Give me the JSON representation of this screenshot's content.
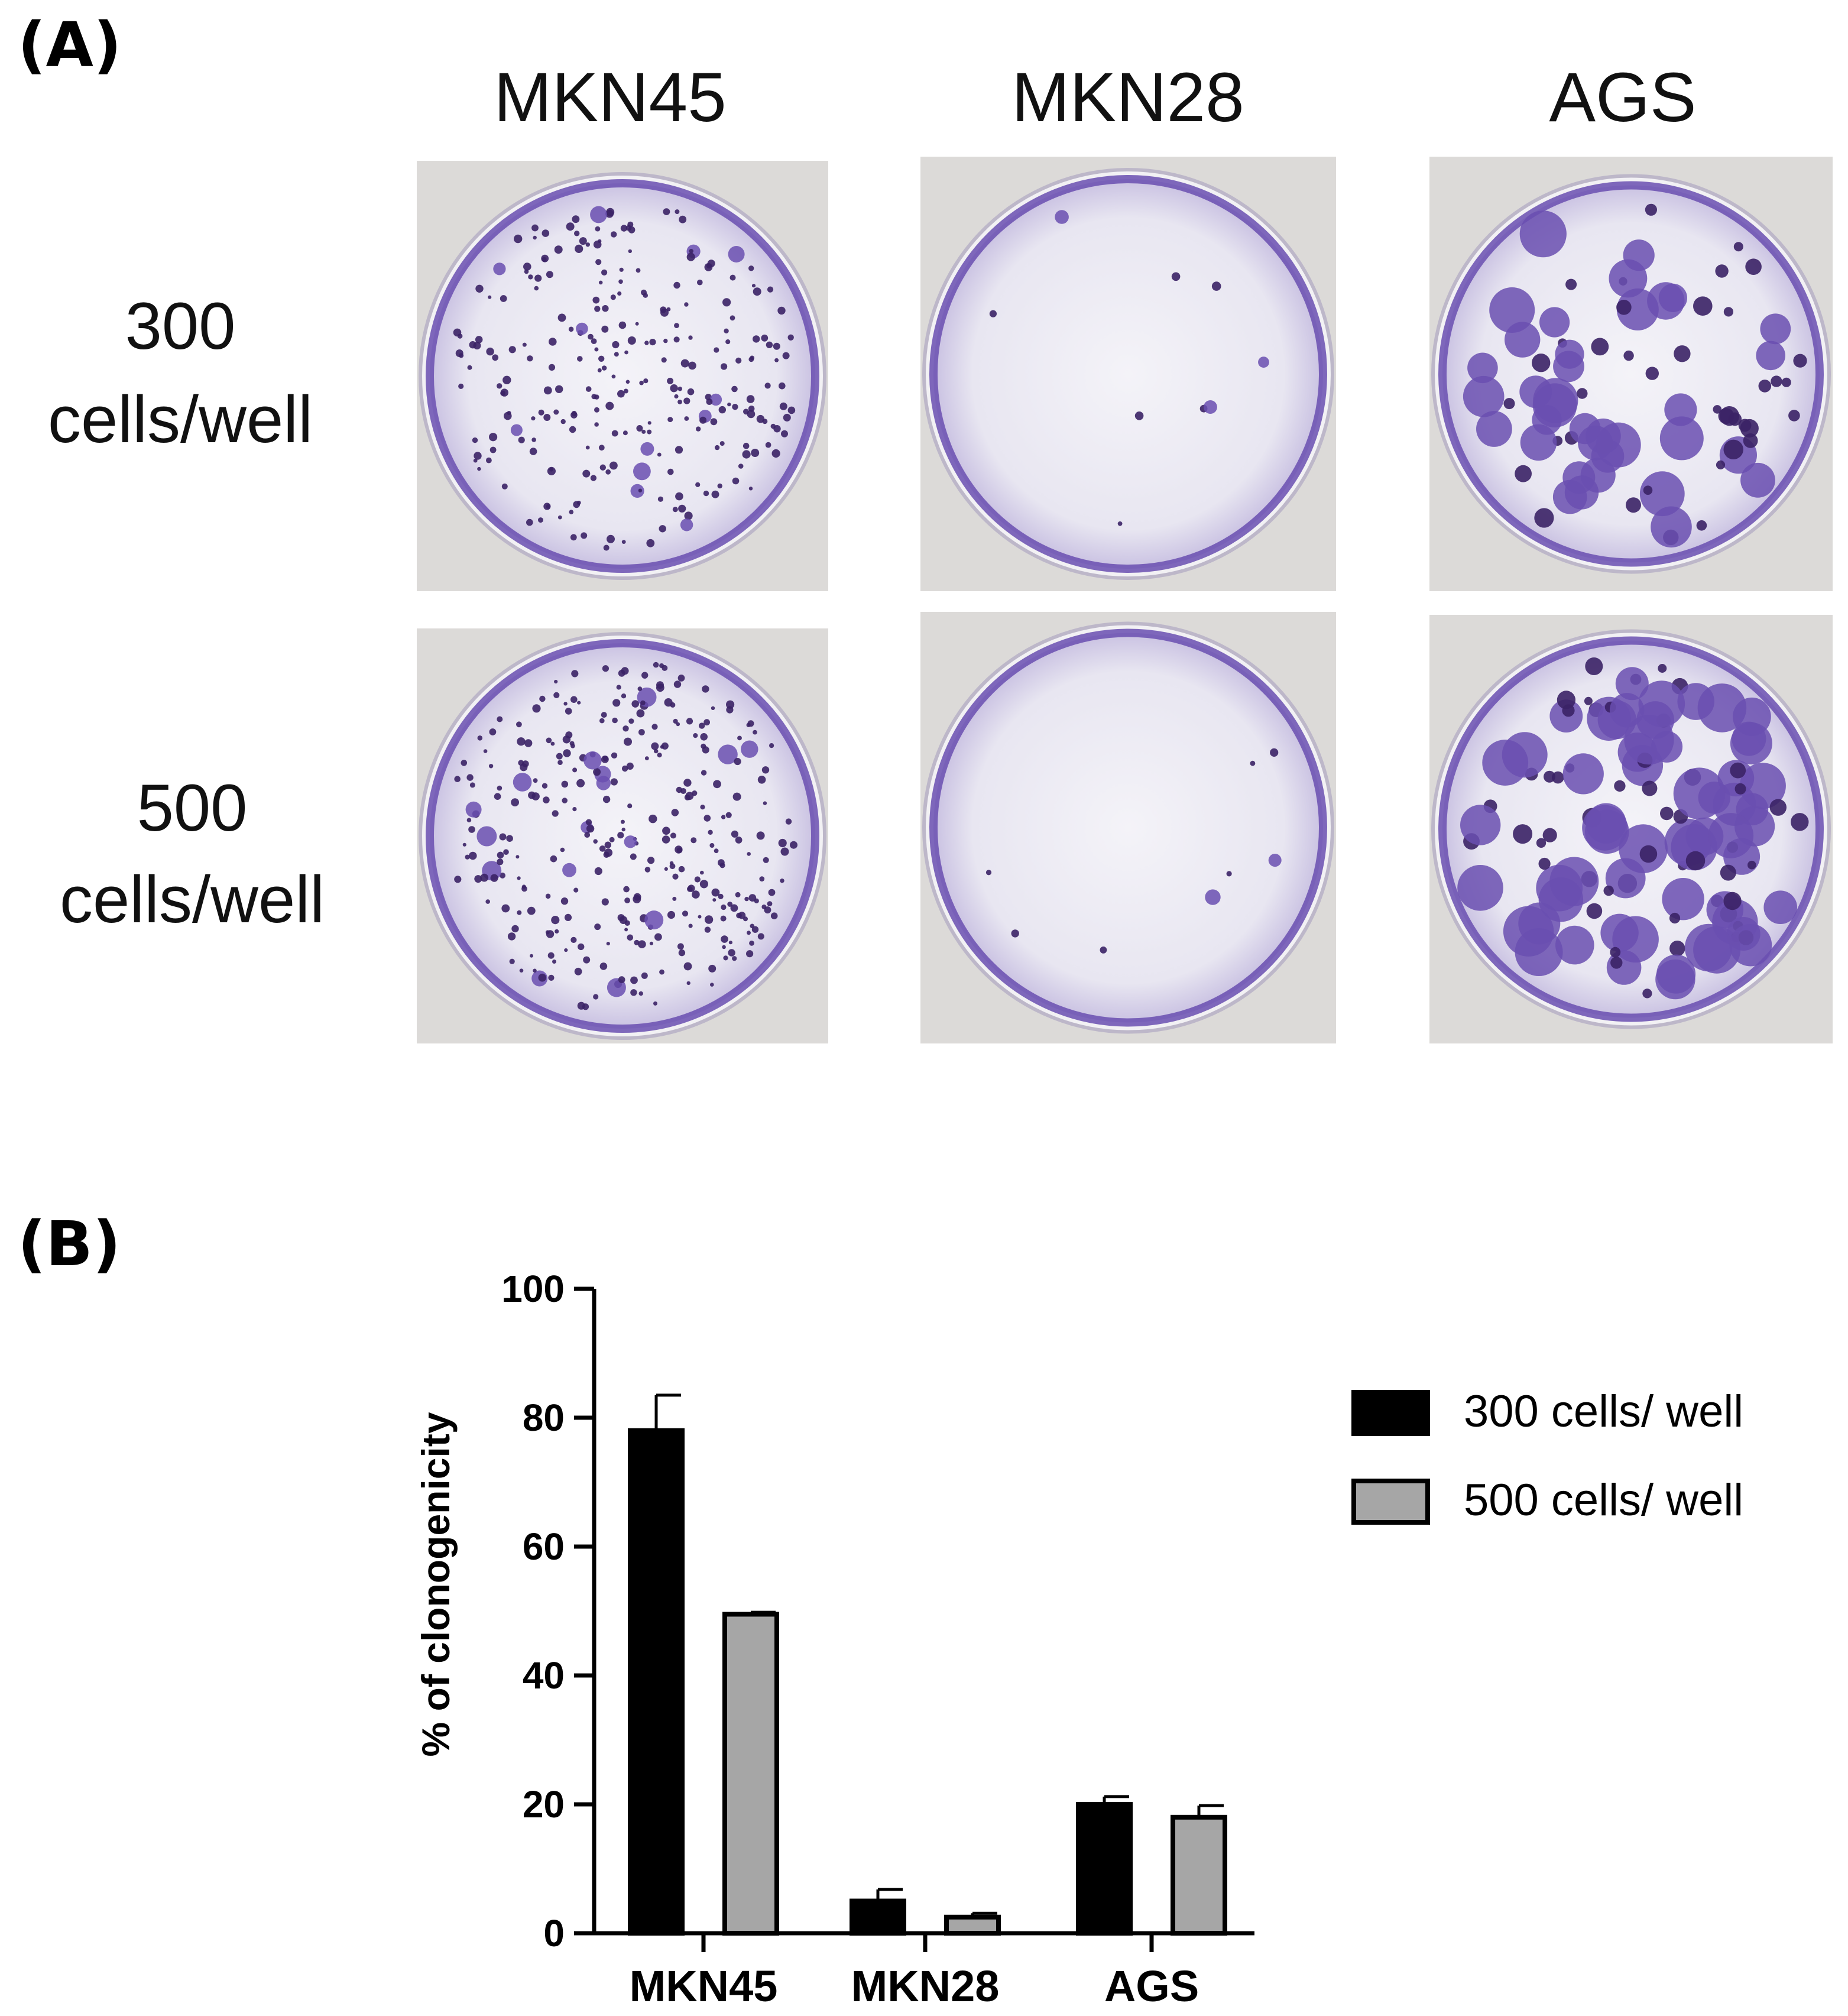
{
  "panel_a": {
    "label": "(A)",
    "columns": [
      "MKN45",
      "MKN28",
      "AGS"
    ],
    "rows": [
      {
        "line1": "300",
        "line2": "cells/well"
      },
      {
        "line1": "500",
        "line2": "cells/well"
      }
    ]
  },
  "panel_b": {
    "label": "(B)"
  },
  "colors": {
    "stain": "#6a4fb0",
    "stain_dark": "#3b2266",
    "dish_bg": "#efeef5",
    "bench": "#dcdad8",
    "series_300": "#000000",
    "series_500": "#a6a6a6"
  },
  "chart_data": {
    "type": "bar",
    "categories": [
      "MKN45",
      "MKN28",
      "AGS"
    ],
    "series": [
      {
        "name": "300 cells/ well",
        "values": [
          78,
          5,
          20
        ],
        "errors": [
          5.5,
          1.8,
          1.2
        ]
      },
      {
        "name": "500 cells/ well",
        "values": [
          49.5,
          2.5,
          18
        ],
        "errors": [
          0.3,
          0.6,
          1.8
        ]
      }
    ],
    "ylabel": "% of clonogenicity",
    "xlabel": "",
    "ylim": [
      0,
      100
    ],
    "yticks": [
      "0",
      "20",
      "40",
      "60",
      "80",
      "100"
    ],
    "legend_position": "right",
    "grid": false
  }
}
